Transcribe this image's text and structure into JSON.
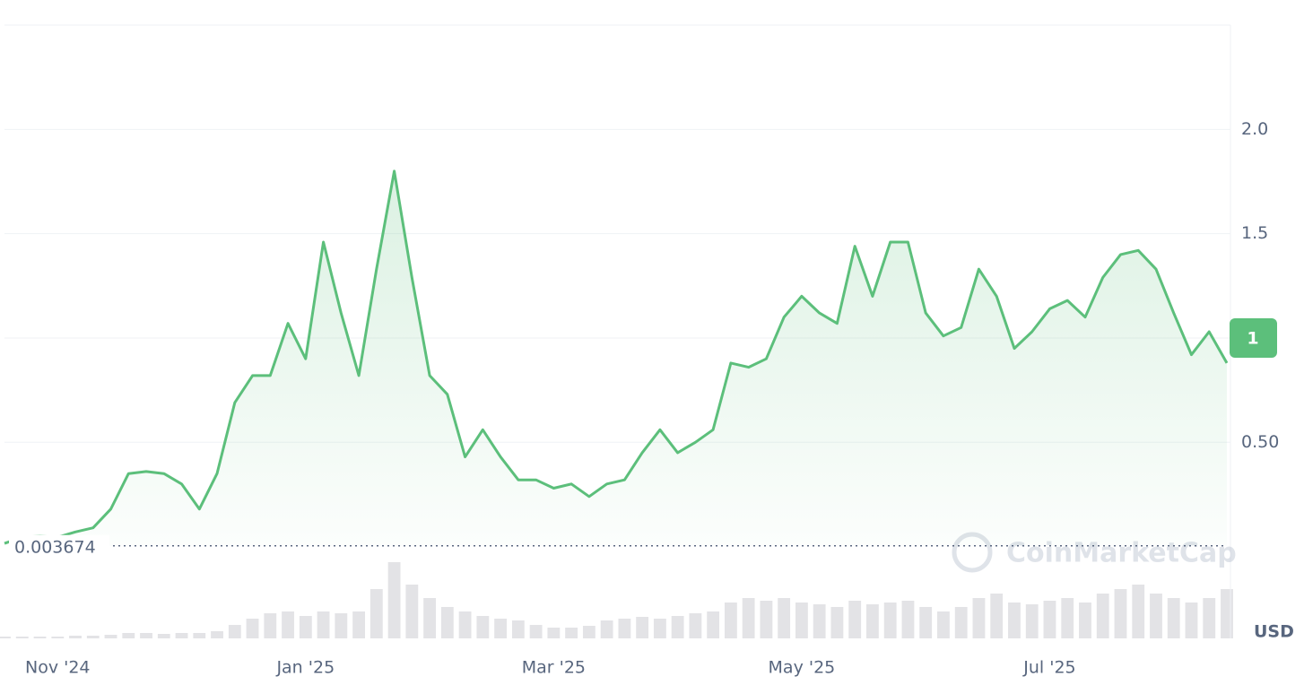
{
  "chart_data": {
    "type": "line",
    "categories": [
      null,
      null,
      null,
      "Nov '24",
      null,
      null,
      null,
      null,
      null,
      null,
      null,
      null,
      null,
      null,
      null,
      null,
      null,
      "Jan '25",
      null,
      null,
      null,
      null,
      null,
      null,
      null,
      null,
      null,
      null,
      null,
      null,
      null,
      "Mar '25",
      null,
      null,
      null,
      null,
      null,
      null,
      null,
      null,
      null,
      null,
      null,
      null,
      null,
      "May '25",
      null,
      null,
      null,
      null,
      null,
      null,
      null,
      null,
      null,
      null,
      null,
      null,
      null,
      "Jul '25",
      null,
      null,
      null,
      null,
      null,
      null,
      null,
      null,
      null,
      null
    ],
    "series": [
      {
        "name": "Price",
        "color": "#5cbf7b",
        "values": [
          0.015,
          0.045,
          0.05,
          0.045,
          0.07,
          0.09,
          0.18,
          0.35,
          0.36,
          0.35,
          0.3,
          0.18,
          0.35,
          0.69,
          0.82,
          0.82,
          1.07,
          0.9,
          1.46,
          1.12,
          0.82,
          1.33,
          1.8,
          1.29,
          0.82,
          0.73,
          0.43,
          0.56,
          0.43,
          0.32,
          0.32,
          0.28,
          0.3,
          0.24,
          0.3,
          0.32,
          0.45,
          0.56,
          0.45,
          0.5,
          0.56,
          0.88,
          0.86,
          0.9,
          1.1,
          1.2,
          1.12,
          1.07,
          1.44,
          1.2,
          1.46,
          1.46,
          1.12,
          1.01,
          1.05,
          1.33,
          1.2,
          0.95,
          1.03,
          1.14,
          1.18,
          1.1,
          1.29,
          1.4,
          1.42,
          1.33,
          1.12,
          0.92,
          1.03,
          0.88
        ]
      },
      {
        "name": "Volume",
        "color": "#e3e3e6",
        "axis": "y2",
        "values": [
          2,
          2,
          2,
          2,
          3,
          3,
          4,
          6,
          6,
          5,
          6,
          6,
          8,
          15,
          22,
          28,
          30,
          25,
          30,
          28,
          30,
          55,
          85,
          60,
          45,
          35,
          30,
          25,
          22,
          20,
          15,
          12,
          12,
          14,
          20,
          22,
          24,
          22,
          25,
          28,
          30,
          40,
          45,
          42,
          45,
          40,
          38,
          35,
          42,
          38,
          40,
          42,
          35,
          30,
          35,
          45,
          50,
          40,
          38,
          42,
          45,
          40,
          50,
          55,
          60,
          50,
          45,
          40,
          45,
          55
        ]
      }
    ],
    "ylim": [
      -0.44,
      2.5
    ],
    "y2lim": [
      0,
      100
    ],
    "yticks": [
      {
        "value": 0.5,
        "label": "0.50"
      },
      {
        "value": 1,
        "label": "1.0"
      },
      1.5,
      {
        "value": 2,
        "label": "2.0"
      }
    ],
    "grid": true,
    "baseline": 0.003674,
    "current_price": 1.0,
    "currency": "USD",
    "watermark": "CoinMarketCap"
  }
}
